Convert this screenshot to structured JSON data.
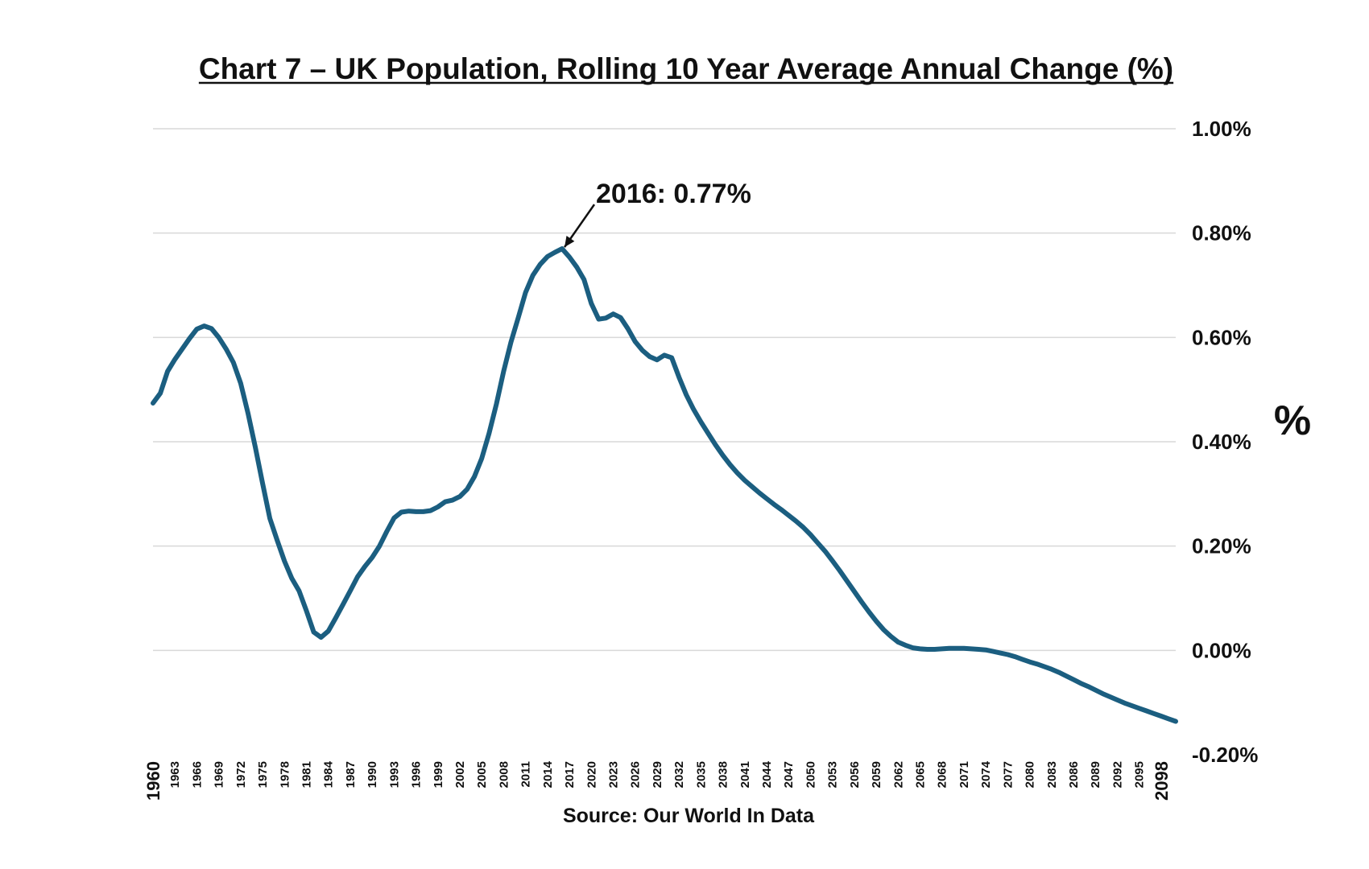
{
  "chart_data": {
    "type": "line",
    "title": "Chart 7 – UK Population, Rolling 10 Year Average Annual Change (%)",
    "ylabel": "%",
    "source": "Source: Our World In Data",
    "ylim": [
      -0.2,
      1.0
    ],
    "yticks": [
      1.0,
      0.8,
      0.6,
      0.4,
      0.2,
      0.0,
      -0.2
    ],
    "ytick_labels": [
      "1.00%",
      "0.80%",
      "0.60%",
      "0.40%",
      "0.20%",
      "0.00%",
      "-0.20%"
    ],
    "xlim": [
      1960,
      2100
    ],
    "xticks": [
      1960,
      1963,
      1966,
      1969,
      1972,
      1975,
      1978,
      1981,
      1984,
      1987,
      1990,
      1993,
      1996,
      1999,
      2002,
      2005,
      2008,
      2011,
      2014,
      2017,
      2020,
      2023,
      2026,
      2029,
      2032,
      2035,
      2038,
      2041,
      2044,
      2047,
      2050,
      2053,
      2056,
      2059,
      2062,
      2065,
      2068,
      2071,
      2074,
      2077,
      2080,
      2083,
      2086,
      2089,
      2092,
      2095,
      2098
    ],
    "xtick_labels": [
      "1960",
      "1963",
      "1966",
      "1969",
      "1972",
      "1975",
      "1978",
      "1981",
      "1984",
      "1987",
      "1990",
      "1993",
      "1996",
      "1999",
      "2002",
      "2005",
      "2008",
      "2011",
      "2014",
      "2017",
      "2020",
      "2023",
      "2026",
      "2029",
      "2032",
      "2035",
      "2038",
      "2041",
      "2044",
      "2047",
      "2050",
      "2053",
      "2056",
      "2059",
      "2062",
      "2065",
      "2068",
      "2071",
      "2074",
      "2077",
      "2080",
      "2083",
      "2086",
      "2089",
      "2092",
      "2095",
      "2098"
    ],
    "grid": true,
    "line_color": "#1b5e80",
    "series": [
      {
        "x": [
          1960,
          1961,
          1962,
          1963,
          1964,
          1965,
          1966,
          1967,
          1968,
          1969,
          1970,
          1971,
          1972,
          1973,
          1974,
          1975,
          1976,
          1977,
          1978,
          1979,
          1980,
          1981,
          1982,
          1983,
          1984,
          1985,
          1986,
          1987,
          1988,
          1989,
          1990,
          1991,
          1992,
          1993,
          1994,
          1995,
          1996,
          1997,
          1998,
          1999,
          2000,
          2001,
          2002,
          2003,
          2004,
          2005,
          2006,
          2007,
          2008,
          2009,
          2010,
          2011,
          2012,
          2013,
          2014,
          2015,
          2016,
          2017,
          2018,
          2019,
          2020,
          2021,
          2022,
          2023,
          2024,
          2025,
          2026,
          2027,
          2028,
          2029,
          2030,
          2031,
          2032,
          2033,
          2034,
          2035,
          2036,
          2037,
          2038,
          2039,
          2040,
          2041,
          2042,
          2043,
          2044,
          2045,
          2046,
          2047,
          2048,
          2049,
          2050,
          2051,
          2052,
          2053,
          2054,
          2055,
          2056,
          2057,
          2058,
          2059,
          2060,
          2061,
          2062,
          2063,
          2064,
          2065,
          2066,
          2067,
          2068,
          2069,
          2070,
          2071,
          2072,
          2073,
          2074,
          2075,
          2076,
          2077,
          2078,
          2079,
          2080,
          2081,
          2082,
          2083,
          2084,
          2085,
          2086,
          2087,
          2088,
          2089,
          2090,
          2091,
          2092,
          2093,
          2094,
          2095,
          2096,
          2097,
          2098,
          2099,
          2100
        ],
        "values": [
          0.474,
          0.493,
          0.535,
          0.558,
          0.578,
          0.598,
          0.616,
          0.622,
          0.617,
          0.6,
          0.578,
          0.552,
          0.512,
          0.455,
          0.39,
          0.32,
          0.253,
          0.211,
          0.171,
          0.138,
          0.114,
          0.076,
          0.035,
          0.025,
          0.037,
          0.062,
          0.088,
          0.114,
          0.141,
          0.161,
          0.178,
          0.2,
          0.228,
          0.254,
          0.265,
          0.267,
          0.266,
          0.266,
          0.268,
          0.275,
          0.285,
          0.288,
          0.295,
          0.309,
          0.333,
          0.368,
          0.416,
          0.472,
          0.535,
          0.591,
          0.638,
          0.686,
          0.719,
          0.74,
          0.755,
          0.763,
          0.77,
          0.754,
          0.735,
          0.711,
          0.665,
          0.635,
          0.637,
          0.645,
          0.638,
          0.617,
          0.592,
          0.575,
          0.563,
          0.557,
          0.566,
          0.561,
          0.524,
          0.49,
          0.462,
          0.438,
          0.416,
          0.394,
          0.374,
          0.356,
          0.34,
          0.326,
          0.314,
          0.302,
          0.291,
          0.28,
          0.27,
          0.259,
          0.248,
          0.236,
          0.222,
          0.206,
          0.19,
          0.172,
          0.153,
          0.133,
          0.113,
          0.093,
          0.074,
          0.056,
          0.04,
          0.027,
          0.016,
          0.01,
          0.005,
          0.003,
          0.002,
          0.002,
          0.003,
          0.004,
          0.004,
          0.004,
          0.003,
          0.002,
          0.001,
          -0.002,
          -0.005,
          -0.008,
          -0.012,
          -0.017,
          -0.022,
          -0.026,
          -0.031,
          -0.036,
          -0.042,
          -0.049,
          -0.056,
          -0.063,
          -0.069,
          -0.076,
          -0.083,
          -0.089,
          -0.095,
          -0.101,
          -0.106,
          -0.111,
          -0.116,
          -0.121,
          -0.126,
          -0.131,
          -0.136
        ]
      }
    ],
    "annotations": [
      {
        "text": "2016: 0.77%",
        "x": 2016,
        "y": 0.77
      }
    ]
  }
}
